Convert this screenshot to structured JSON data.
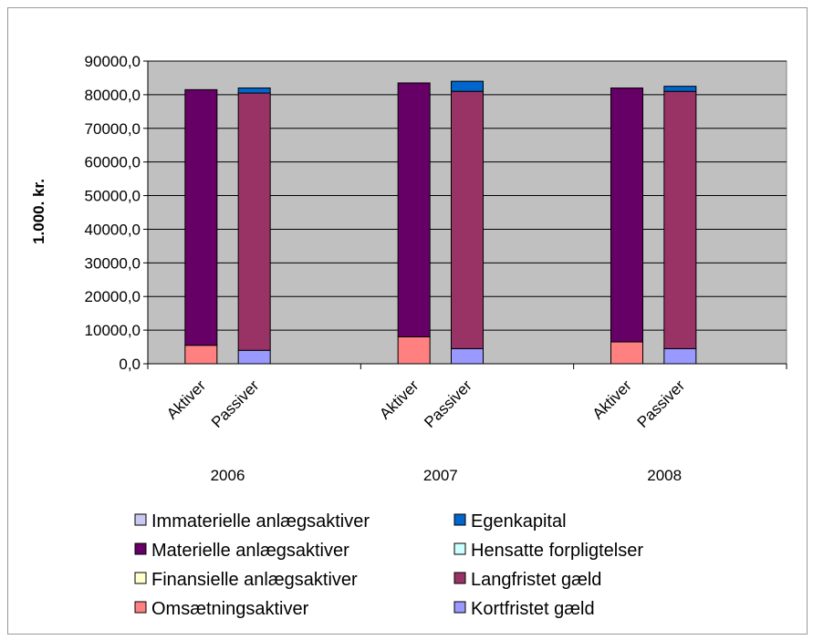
{
  "chart_data": {
    "type": "bar",
    "stacked": true,
    "ylabel": "1.000. kr.",
    "ylim": [
      0,
      90000
    ],
    "ytick_step": 10000,
    "ytick_labels": [
      "0,0",
      "10000,0",
      "20000,0",
      "30000,0",
      "40000,0",
      "50000,0",
      "60000,0",
      "70000,0",
      "80000,0",
      "90000,0"
    ],
    "plot_background": "#c0c0c0",
    "grid": true,
    "legend_position": "bottom",
    "groups": [
      "2006",
      "2007",
      "2008"
    ],
    "categories": [
      "Aktiver",
      "Passiver",
      "Aktiver",
      "Passiver",
      "Aktiver",
      "Passiver"
    ],
    "series": [
      {
        "name": "Immaterielle anlægsaktiver",
        "color": "#c8c8f0",
        "values": [
          0,
          0,
          0,
          0,
          0,
          0
        ]
      },
      {
        "name": "Materielle anlægsaktiver",
        "color": "#660066",
        "values": [
          76000,
          0,
          75500,
          0,
          75500,
          0
        ]
      },
      {
        "name": "Finansielle anlægsaktiver",
        "color": "#ffffcc",
        "values": [
          0,
          0,
          0,
          0,
          0,
          0
        ]
      },
      {
        "name": "Omsætningsaktiver",
        "color": "#ff8080",
        "values": [
          5500,
          0,
          8000,
          0,
          6500,
          0
        ]
      },
      {
        "name": "Egenkapital",
        "color": "#0066cc",
        "values": [
          0,
          1500,
          0,
          3000,
          0,
          1500
        ]
      },
      {
        "name": "Hensatte forpligtelser",
        "color": "#ccffff",
        "values": [
          0,
          0,
          0,
          0,
          0,
          0
        ]
      },
      {
        "name": "Langfristet gæld",
        "color": "#993366",
        "values": [
          0,
          76500,
          0,
          76500,
          0,
          76500
        ]
      },
      {
        "name": "Kortfristet gæld",
        "color": "#9999ff",
        "values": [
          0,
          4000,
          0,
          4500,
          0,
          4500
        ]
      }
    ],
    "stack_order": [
      "Kortfristet gæld",
      "Omsætningsaktiver",
      "Finansielle anlægsaktiver",
      "Immaterielle anlægsaktiver",
      "Materielle anlægsaktiver",
      "Hensatte forpligtelser",
      "Langfristet gæld",
      "Egenkapital"
    ],
    "legend_layout": [
      [
        "Immaterielle anlægsaktiver",
        "Egenkapital"
      ],
      [
        "Materielle anlægsaktiver",
        "Hensatte forpligtelser"
      ],
      [
        "Finansielle anlægsaktiver",
        "Langfristet gæld"
      ],
      [
        "Omsætningsaktiver",
        "Kortfristet gæld"
      ]
    ]
  }
}
